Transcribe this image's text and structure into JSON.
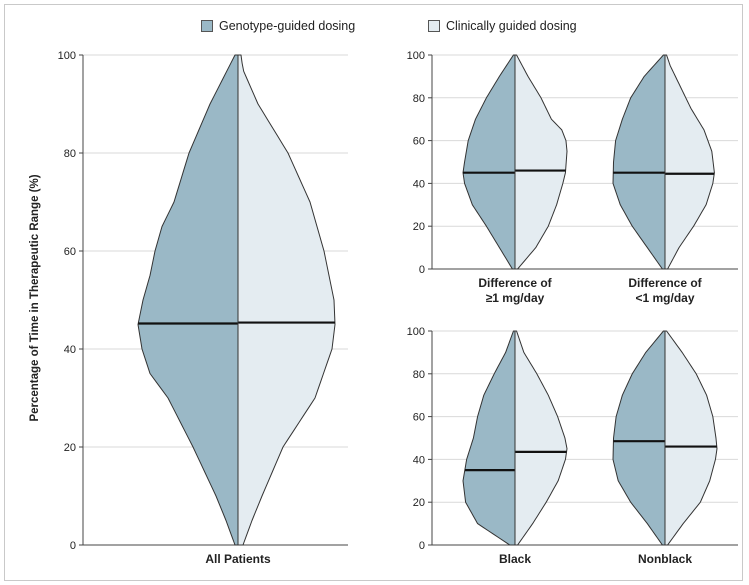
{
  "legend": {
    "genotype": {
      "label": "Genotype-guided dosing",
      "color": "#9ab8c6"
    },
    "clinical": {
      "label": "Clinically guided dosing",
      "color": "#e4ecf1"
    }
  },
  "ylabel": "Percentage of Time in Therapeutic Range (%)",
  "chart_data": [
    {
      "type": "violin",
      "panel": "main",
      "category": "All Patients",
      "ylim": [
        0,
        100
      ],
      "yticks": [
        0,
        20,
        40,
        60,
        80,
        100
      ],
      "grid": true,
      "series": [
        {
          "group": "genotype",
          "median": 45.2,
          "profile": [
            [
              0,
              0.03
            ],
            [
              5,
              0.12
            ],
            [
              10,
              0.22
            ],
            [
              20,
              0.45
            ],
            [
              30,
              0.7
            ],
            [
              35,
              0.88
            ],
            [
              40,
              0.96
            ],
            [
              45,
              1.0
            ],
            [
              50,
              0.95
            ],
            [
              55,
              0.88
            ],
            [
              60,
              0.83
            ],
            [
              65,
              0.76
            ],
            [
              70,
              0.64
            ],
            [
              80,
              0.49
            ],
            [
              90,
              0.28
            ],
            [
              100,
              0.03
            ]
          ]
        },
        {
          "group": "clinical",
          "median": 45.4,
          "profile": [
            [
              0,
              0.05
            ],
            [
              5,
              0.14
            ],
            [
              10,
              0.24
            ],
            [
              20,
              0.45
            ],
            [
              30,
              0.77
            ],
            [
              40,
              0.94
            ],
            [
              45,
              0.97
            ],
            [
              50,
              0.96
            ],
            [
              55,
              0.91
            ],
            [
              60,
              0.86
            ],
            [
              70,
              0.72
            ],
            [
              80,
              0.5
            ],
            [
              90,
              0.2
            ],
            [
              97,
              0.05
            ],
            [
              100,
              0.03
            ]
          ]
        }
      ]
    },
    {
      "type": "violin",
      "panel": "top-left",
      "category": [
        "Difference of",
        "≥1 mg/day"
      ],
      "ylim": [
        0,
        100
      ],
      "yticks": [
        0,
        20,
        40,
        60,
        80,
        100
      ],
      "grid": true,
      "series": [
        {
          "group": "genotype",
          "median": 45,
          "profile": [
            [
              0,
              0.05
            ],
            [
              10,
              0.3
            ],
            [
              20,
              0.55
            ],
            [
              30,
              0.82
            ],
            [
              40,
              0.97
            ],
            [
              45,
              1.0
            ],
            [
              50,
              0.97
            ],
            [
              60,
              0.9
            ],
            [
              70,
              0.76
            ],
            [
              80,
              0.55
            ],
            [
              90,
              0.3
            ],
            [
              100,
              0.03
            ]
          ]
        },
        {
          "group": "clinical",
          "median": 46,
          "profile": [
            [
              0,
              0.05
            ],
            [
              10,
              0.4
            ],
            [
              20,
              0.64
            ],
            [
              30,
              0.8
            ],
            [
              40,
              0.92
            ],
            [
              45,
              0.97
            ],
            [
              55,
              1.0
            ],
            [
              60,
              0.98
            ],
            [
              65,
              0.9
            ],
            [
              70,
              0.7
            ],
            [
              80,
              0.5
            ],
            [
              90,
              0.25
            ],
            [
              100,
              0.03
            ]
          ]
        }
      ]
    },
    {
      "type": "violin",
      "panel": "top-right",
      "category": [
        "Difference of",
        "<1 mg/day"
      ],
      "ylim": [
        0,
        100
      ],
      "yticks": [
        0,
        20,
        40,
        60,
        80,
        100
      ],
      "grid": true,
      "series": [
        {
          "group": "genotype",
          "median": 45,
          "profile": [
            [
              0,
              0.05
            ],
            [
              10,
              0.34
            ],
            [
              20,
              0.63
            ],
            [
              30,
              0.86
            ],
            [
              40,
              1.0
            ],
            [
              50,
              0.99
            ],
            [
              60,
              0.95
            ],
            [
              70,
              0.82
            ],
            [
              80,
              0.66
            ],
            [
              90,
              0.4
            ],
            [
              100,
              0.03
            ]
          ]
        },
        {
          "group": "clinical",
          "median": 44.5,
          "profile": [
            [
              0,
              0.05
            ],
            [
              10,
              0.27
            ],
            [
              20,
              0.55
            ],
            [
              30,
              0.79
            ],
            [
              40,
              0.92
            ],
            [
              45,
              0.95
            ],
            [
              55,
              0.9
            ],
            [
              65,
              0.75
            ],
            [
              75,
              0.5
            ],
            [
              85,
              0.3
            ],
            [
              95,
              0.1
            ],
            [
              100,
              0.03
            ]
          ]
        }
      ]
    },
    {
      "type": "violin",
      "panel": "bottom-left",
      "category": "Black",
      "ylim": [
        0,
        100
      ],
      "yticks": [
        0,
        20,
        40,
        60,
        80,
        100
      ],
      "grid": true,
      "series": [
        {
          "group": "genotype",
          "median": 35,
          "profile": [
            [
              0,
              0.1
            ],
            [
              10,
              0.72
            ],
            [
              20,
              0.95
            ],
            [
              30,
              1.0
            ],
            [
              40,
              0.93
            ],
            [
              50,
              0.8
            ],
            [
              60,
              0.72
            ],
            [
              70,
              0.6
            ],
            [
              80,
              0.4
            ],
            [
              90,
              0.18
            ],
            [
              100,
              0.03
            ]
          ]
        },
        {
          "group": "clinical",
          "median": 43.5,
          "profile": [
            [
              0,
              0.05
            ],
            [
              10,
              0.34
            ],
            [
              20,
              0.6
            ],
            [
              30,
              0.83
            ],
            [
              40,
              0.97
            ],
            [
              45,
              1.0
            ],
            [
              50,
              0.96
            ],
            [
              60,
              0.82
            ],
            [
              70,
              0.64
            ],
            [
              80,
              0.42
            ],
            [
              90,
              0.17
            ],
            [
              100,
              0.03
            ]
          ]
        }
      ]
    },
    {
      "type": "violin",
      "panel": "bottom-right",
      "category": "Nonblack",
      "ylim": [
        0,
        100
      ],
      "yticks": [
        0,
        20,
        40,
        60,
        80,
        100
      ],
      "grid": true,
      "series": [
        {
          "group": "genotype",
          "median": 48.5,
          "profile": [
            [
              0,
              0.05
            ],
            [
              10,
              0.34
            ],
            [
              20,
              0.66
            ],
            [
              30,
              0.9
            ],
            [
              40,
              1.0
            ],
            [
              50,
              0.99
            ],
            [
              60,
              0.94
            ],
            [
              70,
              0.82
            ],
            [
              80,
              0.63
            ],
            [
              90,
              0.37
            ],
            [
              100,
              0.03
            ]
          ]
        },
        {
          "group": "clinical",
          "median": 46,
          "profile": [
            [
              0,
              0.05
            ],
            [
              10,
              0.35
            ],
            [
              20,
              0.68
            ],
            [
              30,
              0.86
            ],
            [
              40,
              0.97
            ],
            [
              45,
              1.0
            ],
            [
              50,
              0.98
            ],
            [
              60,
              0.92
            ],
            [
              70,
              0.8
            ],
            [
              80,
              0.6
            ],
            [
              90,
              0.33
            ],
            [
              100,
              0.03
            ]
          ]
        }
      ]
    }
  ]
}
